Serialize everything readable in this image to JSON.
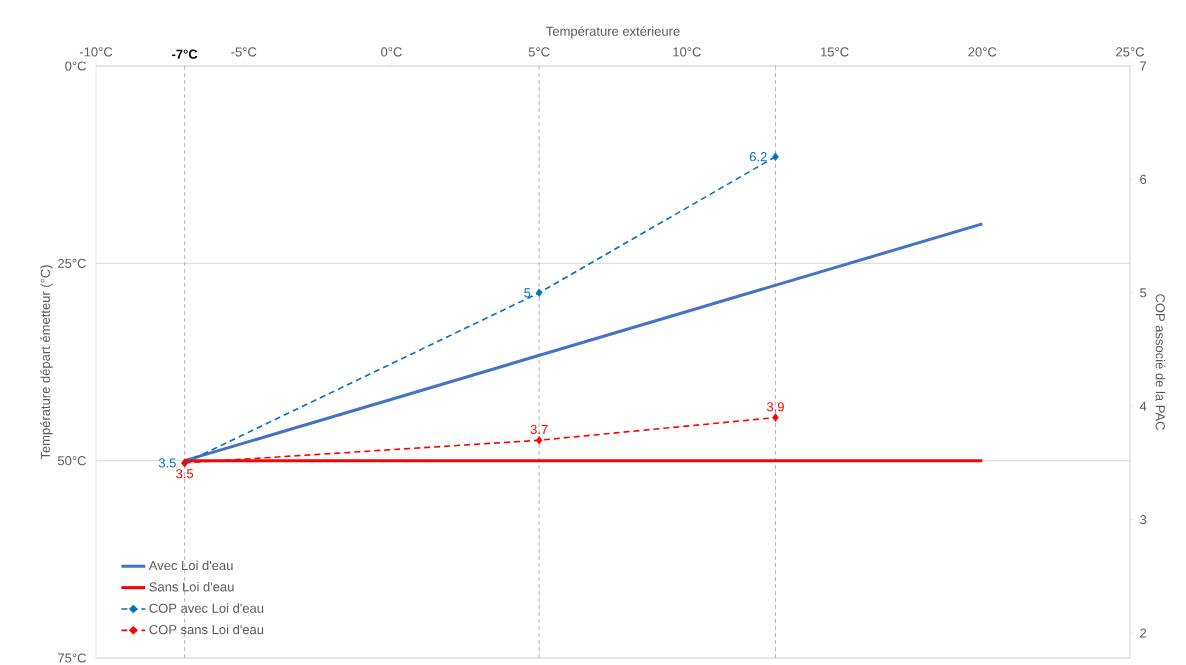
{
  "chart_data": {
    "type": "line",
    "xlabel": "Température extérieure",
    "ylabel": "Température départ émetteur (°C)",
    "y2label": "COP associé de la PAC",
    "xlim": [
      -10,
      25
    ],
    "xticks": [
      {
        "value": -10,
        "label": "-10°C"
      },
      {
        "value": -5,
        "label": "-5°C"
      },
      {
        "value": 0,
        "label": "0°C"
      },
      {
        "value": 5,
        "label": "5°C"
      },
      {
        "value": 10,
        "label": "10°C"
      },
      {
        "value": 15,
        "label": "15°C"
      },
      {
        "value": 20,
        "label": "20°C"
      },
      {
        "value": 25,
        "label": "25°C"
      }
    ],
    "ylim": [
      75,
      0
    ],
    "yticks": [
      {
        "value": 0,
        "label": "0°C"
      },
      {
        "value": 25,
        "label": "25°C"
      },
      {
        "value": 50,
        "label": "50°C"
      },
      {
        "value": 75,
        "label": "75°C"
      }
    ],
    "y2lim": [
      1.78,
      7
    ],
    "y2ticks": [
      2,
      3,
      4,
      5,
      6,
      7
    ],
    "grid": "y",
    "legend": "bottom left",
    "ref_lines": [
      {
        "axis": "x",
        "value": -7,
        "label": "-7°C",
        "color": "#a6a6a6",
        "line_style": "dashed"
      },
      {
        "axis": "x",
        "value": 5,
        "color": "#a6a6a6",
        "line_style": "dashed"
      },
      {
        "axis": "x",
        "value": 13,
        "color": "#a6a6a6",
        "line_style": "dashed"
      }
    ],
    "series": [
      {
        "name": "Avec Loi d'eau",
        "color": "#4472c4",
        "x": [
          -7,
          20
        ],
        "values": [
          50,
          20
        ],
        "marker": "none",
        "line_style": "solid"
      },
      {
        "name": "Sans Loi d'eau",
        "color": "#ff0000",
        "x": [
          -7,
          20
        ],
        "values": [
          50,
          50
        ],
        "marker": "none",
        "line_style": "solid"
      },
      {
        "name": "COP avec Loi d'eau",
        "color": "#0070c0",
        "axis": "y2",
        "x": [
          -7,
          5,
          13
        ],
        "values": [
          3.5,
          5,
          6.2
        ],
        "value_labels": [
          "3.5",
          "5",
          "6.2"
        ],
        "marker": "diamond",
        "line_style": "dashed"
      },
      {
        "name": "COP sans Loi d'eau",
        "color": "#ff0000",
        "axis": "y2",
        "x": [
          -7,
          5,
          13
        ],
        "values": [
          3.5,
          3.7,
          3.9
        ],
        "value_labels": [
          "3.5",
          "3.7",
          "3.9"
        ],
        "marker": "diamond",
        "line_style": "dashed"
      }
    ]
  }
}
